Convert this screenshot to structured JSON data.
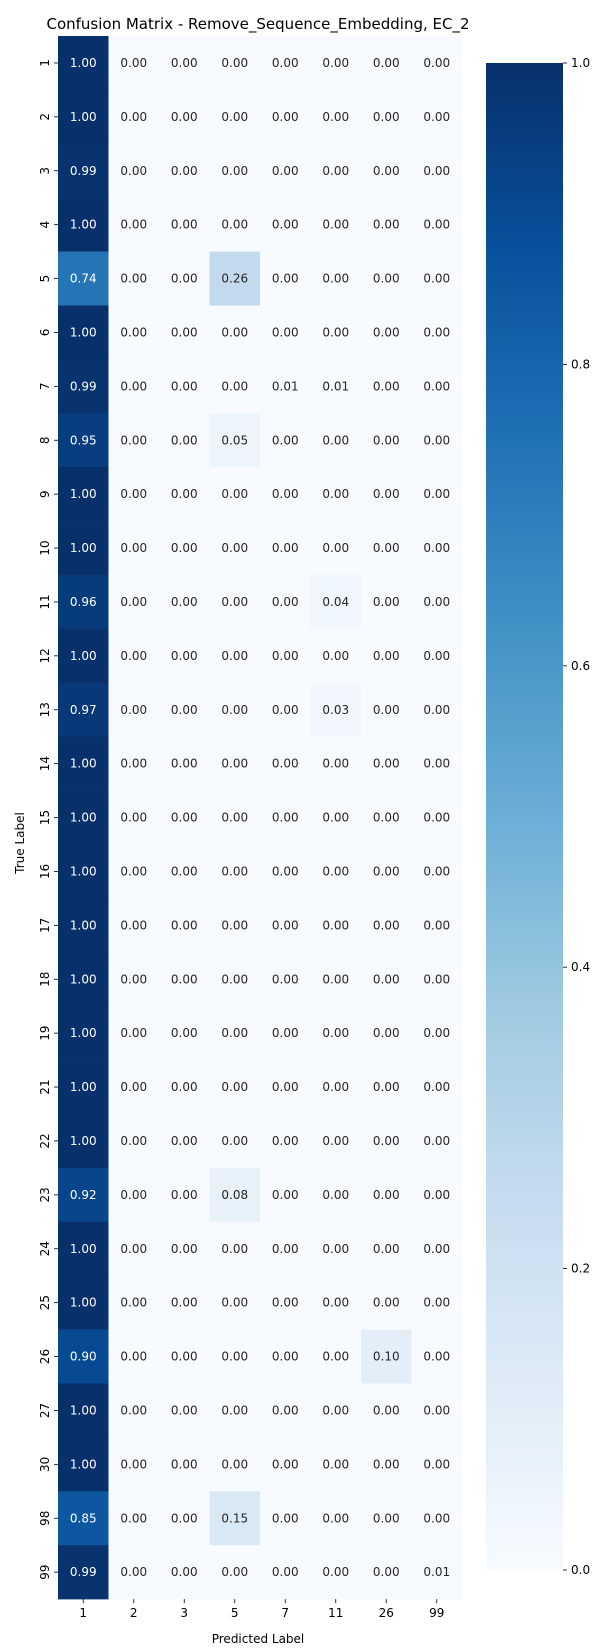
{
  "chart_data": {
    "type": "heatmap",
    "title": "Confusion Matrix - Remove_Sequence_Embedding, EC_2",
    "xlabel": "Predicted Label",
    "ylabel": "True Label",
    "x_categories": [
      "1",
      "2",
      "3",
      "5",
      "7",
      "11",
      "26",
      "99"
    ],
    "y_categories": [
      "1",
      "2",
      "3",
      "4",
      "5",
      "6",
      "7",
      "8",
      "9",
      "10",
      "11",
      "12",
      "13",
      "14",
      "15",
      "16",
      "17",
      "18",
      "19",
      "21",
      "22",
      "23",
      "24",
      "25",
      "26",
      "27",
      "30",
      "98",
      "99"
    ],
    "values": [
      [
        1.0,
        0.0,
        0.0,
        0.0,
        0.0,
        0.0,
        0.0,
        0.0
      ],
      [
        1.0,
        0.0,
        0.0,
        0.0,
        0.0,
        0.0,
        0.0,
        0.0
      ],
      [
        0.99,
        0.0,
        0.0,
        0.0,
        0.0,
        0.0,
        0.0,
        0.0
      ],
      [
        1.0,
        0.0,
        0.0,
        0.0,
        0.0,
        0.0,
        0.0,
        0.0
      ],
      [
        0.74,
        0.0,
        0.0,
        0.26,
        0.0,
        0.0,
        0.0,
        0.0
      ],
      [
        1.0,
        0.0,
        0.0,
        0.0,
        0.0,
        0.0,
        0.0,
        0.0
      ],
      [
        0.99,
        0.0,
        0.0,
        0.0,
        0.01,
        0.01,
        0.0,
        0.0
      ],
      [
        0.95,
        0.0,
        0.0,
        0.05,
        0.0,
        0.0,
        0.0,
        0.0
      ],
      [
        1.0,
        0.0,
        0.0,
        0.0,
        0.0,
        0.0,
        0.0,
        0.0
      ],
      [
        1.0,
        0.0,
        0.0,
        0.0,
        0.0,
        0.0,
        0.0,
        0.0
      ],
      [
        0.96,
        0.0,
        0.0,
        0.0,
        0.0,
        0.04,
        0.0,
        0.0
      ],
      [
        1.0,
        0.0,
        0.0,
        0.0,
        0.0,
        0.0,
        0.0,
        0.0
      ],
      [
        0.97,
        0.0,
        0.0,
        0.0,
        0.0,
        0.03,
        0.0,
        0.0
      ],
      [
        1.0,
        0.0,
        0.0,
        0.0,
        0.0,
        0.0,
        0.0,
        0.0
      ],
      [
        1.0,
        0.0,
        0.0,
        0.0,
        0.0,
        0.0,
        0.0,
        0.0
      ],
      [
        1.0,
        0.0,
        0.0,
        0.0,
        0.0,
        0.0,
        0.0,
        0.0
      ],
      [
        1.0,
        0.0,
        0.0,
        0.0,
        0.0,
        0.0,
        0.0,
        0.0
      ],
      [
        1.0,
        0.0,
        0.0,
        0.0,
        0.0,
        0.0,
        0.0,
        0.0
      ],
      [
        1.0,
        0.0,
        0.0,
        0.0,
        0.0,
        0.0,
        0.0,
        0.0
      ],
      [
        1.0,
        0.0,
        0.0,
        0.0,
        0.0,
        0.0,
        0.0,
        0.0
      ],
      [
        1.0,
        0.0,
        0.0,
        0.0,
        0.0,
        0.0,
        0.0,
        0.0
      ],
      [
        0.92,
        0.0,
        0.0,
        0.08,
        0.0,
        0.0,
        0.0,
        0.0
      ],
      [
        1.0,
        0.0,
        0.0,
        0.0,
        0.0,
        0.0,
        0.0,
        0.0
      ],
      [
        1.0,
        0.0,
        0.0,
        0.0,
        0.0,
        0.0,
        0.0,
        0.0
      ],
      [
        0.9,
        0.0,
        0.0,
        0.0,
        0.0,
        0.0,
        0.1,
        0.0
      ],
      [
        1.0,
        0.0,
        0.0,
        0.0,
        0.0,
        0.0,
        0.0,
        0.0
      ],
      [
        1.0,
        0.0,
        0.0,
        0.0,
        0.0,
        0.0,
        0.0,
        0.0
      ],
      [
        0.85,
        0.0,
        0.0,
        0.15,
        0.0,
        0.0,
        0.0,
        0.0
      ],
      [
        0.99,
        0.0,
        0.0,
        0.0,
        0.0,
        0.0,
        0.0,
        0.01
      ]
    ],
    "value_format": "0.00",
    "colormap": "Blues",
    "colormap_stops": [
      "#f7fbff",
      "#deebf7",
      "#c6dbef",
      "#9ecae1",
      "#6baed6",
      "#4292c6",
      "#2171b5",
      "#08519c",
      "#08306b"
    ],
    "colorbar": {
      "range": [
        0.0,
        1.0
      ],
      "ticks": [
        "0.0",
        "0.2",
        "0.4",
        "0.6",
        "0.8",
        "1.0"
      ]
    },
    "grid": false,
    "legend": "colorbar-right"
  }
}
